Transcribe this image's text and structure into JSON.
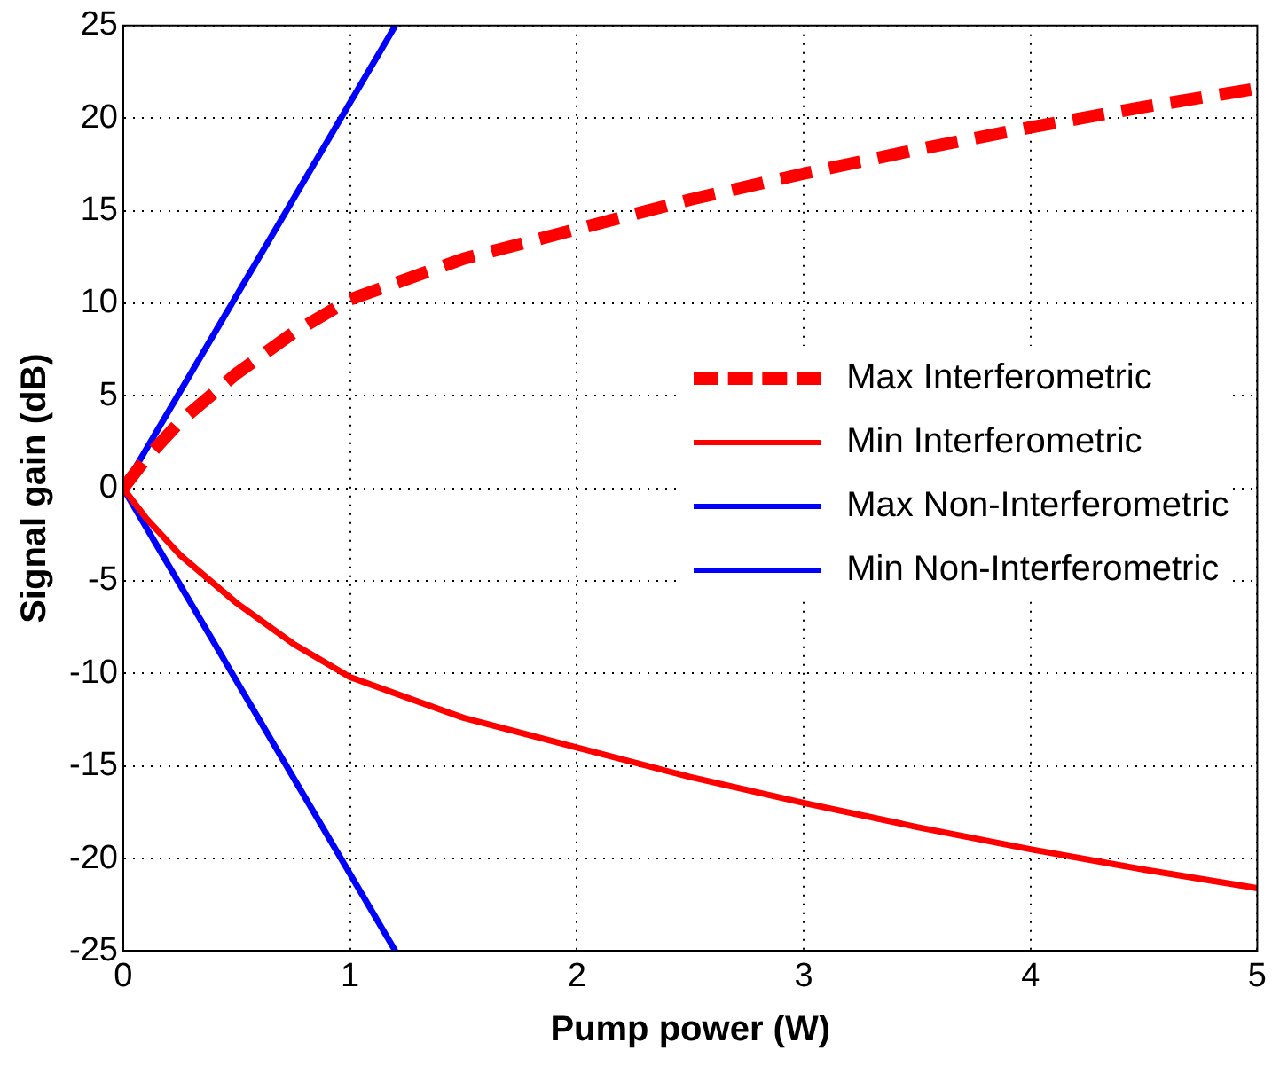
{
  "chart_data": {
    "type": "line",
    "xlabel": "Pump power (W)",
    "ylabel": "Signal gain (dB)",
    "xlim": [
      0,
      5
    ],
    "ylim": [
      -25,
      25
    ],
    "xticks": [
      0,
      1,
      2,
      3,
      4,
      5
    ],
    "yticks": [
      -25,
      -20,
      -15,
      -10,
      -5,
      0,
      5,
      10,
      15,
      20,
      25
    ],
    "grid": true,
    "legend": "right",
    "marker": "none",
    "series": [
      {
        "name": "Max Interferometric",
        "color": "#ff0000",
        "line_style": "dashed",
        "x": [
          0,
          0.1,
          0.25,
          0.5,
          0.75,
          1,
          1.5,
          2,
          2.5,
          3,
          3.5,
          4,
          4.5,
          5
        ],
        "values": [
          0,
          1.6,
          3.6,
          6.2,
          8.4,
          10.2,
          12.4,
          14.0,
          15.6,
          17.0,
          18.3,
          19.5,
          20.6,
          21.6
        ]
      },
      {
        "name": "Min Interferometric",
        "color": "#ff0000",
        "line_style": "solid",
        "x": [
          0,
          0.1,
          0.25,
          0.5,
          0.75,
          1,
          1.5,
          2,
          2.5,
          3,
          3.5,
          4,
          4.5,
          5
        ],
        "values": [
          0,
          -1.6,
          -3.6,
          -6.2,
          -8.4,
          -10.2,
          -12.4,
          -14.0,
          -15.6,
          -17.0,
          -18.3,
          -19.5,
          -20.6,
          -21.6
        ]
      },
      {
        "name": "Max Non-Interferometric",
        "color": "#0000ff",
        "line_style": "solid",
        "x": [
          0,
          1.2
        ],
        "values": [
          0,
          25
        ]
      },
      {
        "name": "Min Non-Interferometric",
        "color": "#0000ff",
        "line_style": "solid",
        "x": [
          0,
          1.2
        ],
        "values": [
          0,
          -25
        ]
      }
    ]
  }
}
